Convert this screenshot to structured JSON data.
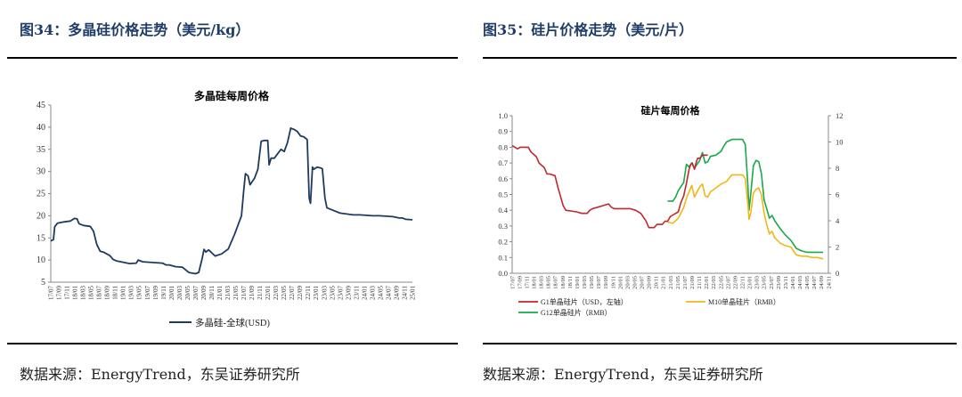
{
  "colors": {
    "title": "#1f3d68",
    "poly_line": "#1f3a5f",
    "g1": "#c0282d",
    "m10": "#f2b619",
    "g12": "#1aa84a"
  },
  "left": {
    "figure_title": "图34：多晶硅价格走势（美元/kg）",
    "source": "数据来源：EnergyTrend，东吴证券研究所"
  },
  "right": {
    "figure_title": "图35：硅片价格走势（美元/片）",
    "source": "数据来源：EnergyTrend，东吴证券研究所"
  },
  "chart_data": [
    {
      "type": "line",
      "title": "多晶硅每周价格",
      "xlabel": "",
      "ylabel": "",
      "ylim": [
        5,
        45
      ],
      "yticks": [
        5,
        10,
        15,
        20,
        25,
        30,
        35,
        40,
        45
      ],
      "xticks": [
        "17/07",
        "17/09",
        "17/11",
        "18/01",
        "18/03",
        "18/05",
        "18/07",
        "18/09",
        "18/11",
        "19/01",
        "19/03",
        "19/05",
        "19/07",
        "19/09",
        "19/11",
        "20/01",
        "20/03",
        "20/05",
        "20/07",
        "20/09",
        "20/11",
        "21/01",
        "21/03",
        "21/05",
        "21/07",
        "21/09",
        "21/11",
        "22/01",
        "22/03",
        "22/05",
        "22/07",
        "22/09",
        "22/11",
        "23/01",
        "23/03",
        "23/05",
        "23/07",
        "23/09",
        "23/11",
        "24/01",
        "24/03",
        "24/05",
        "24/07",
        "24/09",
        "24/11",
        "25/01"
      ],
      "grid": false,
      "legend_position": "bottom",
      "series": [
        {
          "name": "多晶硅-全球(USD)",
          "points": [
            [
              0,
              14.3
            ],
            [
              0.4,
              14.6
            ],
            [
              0.6,
              17.5
            ],
            [
              1,
              18.3
            ],
            [
              2,
              18.6
            ],
            [
              3,
              18.8
            ],
            [
              3.6,
              19.4
            ],
            [
              4,
              19.3
            ],
            [
              4.3,
              18.2
            ],
            [
              5,
              17.8
            ],
            [
              6,
              17.6
            ],
            [
              6.5,
              16.5
            ],
            [
              7,
              13.5
            ],
            [
              7.5,
              12
            ],
            [
              8,
              11.8
            ],
            [
              9,
              11
            ],
            [
              9.5,
              10.1
            ],
            [
              10,
              9.8
            ],
            [
              11,
              9.5
            ],
            [
              12,
              9.2
            ],
            [
              13,
              9.3
            ],
            [
              13.3,
              10
            ],
            [
              14,
              9.6
            ],
            [
              15,
              9.5
            ],
            [
              16,
              9.4
            ],
            [
              17,
              9.3
            ],
            [
              17.5,
              8.9
            ],
            [
              18,
              8.9
            ],
            [
              19,
              8.5
            ],
            [
              20,
              8.4
            ],
            [
              21,
              7.2
            ],
            [
              22,
              6.9
            ],
            [
              22.5,
              7.2
            ],
            [
              23,
              10.2
            ],
            [
              23.3,
              12.4
            ],
            [
              23.6,
              11.8
            ],
            [
              24,
              12.3
            ],
            [
              25,
              10.9
            ],
            [
              26,
              11.4
            ],
            [
              27,
              12.5
            ],
            [
              28,
              16
            ],
            [
              29,
              20
            ],
            [
              29.3,
              25
            ],
            [
              29.6,
              29.5
            ],
            [
              30,
              29
            ],
            [
              30.3,
              27
            ],
            [
              31,
              28.5
            ],
            [
              31.5,
              30.5
            ],
            [
              32,
              36.8
            ],
            [
              32.5,
              37
            ],
            [
              33,
              37
            ],
            [
              33.2,
              31.5
            ],
            [
              33.5,
              33
            ],
            [
              34,
              33
            ],
            [
              34.5,
              34
            ],
            [
              35,
              35
            ],
            [
              35.5,
              34.5
            ],
            [
              36,
              36.5
            ],
            [
              36.5,
              39.8
            ],
            [
              37,
              39.5
            ],
            [
              37.5,
              39
            ],
            [
              38,
              38
            ],
            [
              38.5,
              37.8
            ],
            [
              39,
              37.2
            ],
            [
              39.3,
              24
            ],
            [
              39.5,
              22.8
            ],
            [
              39.8,
              31
            ],
            [
              40,
              30.5
            ],
            [
              40.5,
              31
            ],
            [
              41,
              30.8
            ],
            [
              41.3,
              30.6
            ],
            [
              41.7,
              24
            ],
            [
              42,
              21.8
            ],
            [
              43,
              21.2
            ],
            [
              44,
              20.6
            ],
            [
              45,
              20.4
            ],
            [
              46,
              20.2
            ],
            [
              47,
              20.2
            ],
            [
              48,
              20.1
            ],
            [
              49,
              20
            ],
            [
              50,
              20
            ],
            [
              51,
              19.9
            ],
            [
              52,
              19.8
            ],
            [
              53,
              19.5
            ],
            [
              53.5,
              19.5
            ],
            [
              54,
              19.2
            ],
            [
              55,
              19.1
            ]
          ]
        }
      ]
    },
    {
      "type": "line",
      "title": "硅片每周价格",
      "xlabel": "",
      "ylabel": "",
      "ylim": [
        0,
        1.0
      ],
      "y2lim": [
        0,
        12
      ],
      "yticks": [
        0.0,
        0.1,
        0.2,
        0.3,
        0.4,
        0.5,
        0.6,
        0.7,
        0.8,
        0.9,
        1.0
      ],
      "y2ticks": [
        0,
        2,
        4,
        6,
        8,
        10,
        12
      ],
      "xticks": [
        "17/07",
        "17/09",
        "17/11",
        "18/01",
        "18/03",
        "18/05",
        "18/07",
        "18/09",
        "18/11",
        "19/01",
        "19/03",
        "19/05",
        "19/07",
        "19/09",
        "19/11",
        "20/01",
        "20/03",
        "20/05",
        "20/07",
        "20/09",
        "20/11",
        "21/01",
        "21/03",
        "21/05",
        "21/07",
        "21/09",
        "21/11",
        "22/01",
        "22/03",
        "22/05",
        "22/07",
        "22/09",
        "22/11",
        "23/01",
        "23/03",
        "23/05",
        "23/07",
        "23/09",
        "23/11",
        "24/01",
        "24/03",
        "24/05",
        "24/07",
        "24/09",
        "24/11"
      ],
      "grid": false,
      "legend_position": "bottom",
      "series": [
        {
          "name": "G1单晶硅片（USD，左轴）",
          "axis": "left",
          "points": [
            [
              0,
              0.81
            ],
            [
              1,
              0.79
            ],
            [
              1.5,
              0.8
            ],
            [
              3,
              0.8
            ],
            [
              3.5,
              0.77
            ],
            [
              4.5,
              0.74
            ],
            [
              5,
              0.7
            ],
            [
              6,
              0.67
            ],
            [
              6.5,
              0.63
            ],
            [
              7,
              0.63
            ],
            [
              8,
              0.62
            ],
            [
              8.5,
              0.55
            ],
            [
              9,
              0.49
            ],
            [
              9.5,
              0.43
            ],
            [
              10,
              0.4
            ],
            [
              12,
              0.39
            ],
            [
              13,
              0.38
            ],
            [
              14,
              0.38
            ],
            [
              14.5,
              0.4
            ],
            [
              15,
              0.41
            ],
            [
              16,
              0.42
            ],
            [
              17,
              0.43
            ],
            [
              18,
              0.44
            ],
            [
              18.5,
              0.42
            ],
            [
              19,
              0.41
            ],
            [
              21,
              0.41
            ],
            [
              22,
              0.41
            ],
            [
              23,
              0.4
            ],
            [
              24,
              0.38
            ],
            [
              25,
              0.33
            ],
            [
              25.5,
              0.29
            ],
            [
              26.5,
              0.29
            ],
            [
              27,
              0.31
            ],
            [
              28,
              0.31
            ],
            [
              28.5,
              0.33
            ],
            [
              29,
              0.33
            ],
            [
              29.5,
              0.36
            ],
            [
              30,
              0.37
            ],
            [
              31,
              0.39
            ],
            [
              31.5,
              0.45
            ],
            [
              32,
              0.49
            ],
            [
              32.5,
              0.57
            ],
            [
              33,
              0.66
            ],
            [
              33.3,
              0.69
            ],
            [
              33.6,
              0.7
            ],
            [
              34,
              0.66
            ],
            [
              34.3,
              0.7
            ],
            [
              34.6,
              0.73
            ],
            [
              35,
              0.73
            ],
            [
              35.5,
              0.75
            ],
            [
              36.5,
              0.75
            ]
          ]
        },
        {
          "name": "M10单晶硅片（RMB）",
          "axis": "right",
          "points": [
            [
              29,
              3.9
            ],
            [
              30,
              3.8
            ],
            [
              31,
              4.2
            ],
            [
              32,
              5.0
            ],
            [
              32.5,
              5.7
            ],
            [
              33,
              6.2
            ],
            [
              33.5,
              6.7
            ],
            [
              34,
              5.8
            ],
            [
              34.5,
              6.2
            ],
            [
              35,
              6.6
            ],
            [
              35.5,
              6.8
            ],
            [
              36,
              5.9
            ],
            [
              36.5,
              5.8
            ],
            [
              37,
              6.2
            ],
            [
              38,
              6.5
            ],
            [
              39,
              6.8
            ],
            [
              40,
              7.0
            ],
            [
              41,
              7.5
            ],
            [
              42,
              7.5
            ],
            [
              43,
              7.5
            ],
            [
              43.5,
              7.2
            ],
            [
              44,
              5.2
            ],
            [
              44.2,
              4.1
            ],
            [
              44.5,
              4.6
            ],
            [
              45,
              6.1
            ],
            [
              45.5,
              6.4
            ],
            [
              46,
              6.5
            ],
            [
              46.5,
              6.0
            ],
            [
              47,
              4.6
            ],
            [
              47.5,
              3.7
            ],
            [
              48,
              3.0
            ],
            [
              48.5,
              3.2
            ],
            [
              49,
              2.7
            ],
            [
              50,
              2.3
            ],
            [
              51,
              2.1
            ],
            [
              52,
              2.0
            ],
            [
              53,
              1.4
            ],
            [
              54,
              1.3
            ],
            [
              55,
              1.3
            ],
            [
              56,
              1.2
            ],
            [
              57,
              1.2
            ],
            [
              58,
              1.1
            ]
          ]
        },
        {
          "name": "G12单晶硅片（RMB）",
          "axis": "right",
          "points": [
            [
              29,
              5.5
            ],
            [
              30,
              5.5
            ],
            [
              30.5,
              5.8
            ],
            [
              31,
              6.3
            ],
            [
              32,
              6.9
            ],
            [
              32.5,
              8.3
            ],
            [
              33,
              8.1
            ],
            [
              33.5,
              8.4
            ],
            [
              34,
              8.0
            ],
            [
              34.5,
              8.3
            ],
            [
              35,
              8.6
            ],
            [
              35.5,
              9.2
            ],
            [
              36,
              8.4
            ],
            [
              36.5,
              8.5
            ],
            [
              37,
              8.9
            ],
            [
              38,
              9.0
            ],
            [
              39,
              9.3
            ],
            [
              39.5,
              9.7
            ],
            [
              40,
              10.0
            ],
            [
              41,
              10.2
            ],
            [
              42,
              10.2
            ],
            [
              43,
              10.2
            ],
            [
              43.5,
              9.8
            ],
            [
              44,
              6.6
            ],
            [
              44.2,
              4.8
            ],
            [
              44.5,
              6.0
            ],
            [
              45,
              8.2
            ],
            [
              45.5,
              8.6
            ],
            [
              46,
              8.5
            ],
            [
              46.5,
              7.6
            ],
            [
              47,
              5.6
            ],
            [
              47.5,
              4.9
            ],
            [
              48,
              4.2
            ],
            [
              48.5,
              4.4
            ],
            [
              49,
              4.0
            ],
            [
              50,
              3.4
            ],
            [
              51,
              2.9
            ],
            [
              52,
              2.5
            ],
            [
              53,
              1.9
            ],
            [
              54,
              1.7
            ],
            [
              55,
              1.6
            ],
            [
              56,
              1.6
            ],
            [
              57,
              1.6
            ],
            [
              58,
              1.6
            ]
          ]
        }
      ]
    }
  ]
}
